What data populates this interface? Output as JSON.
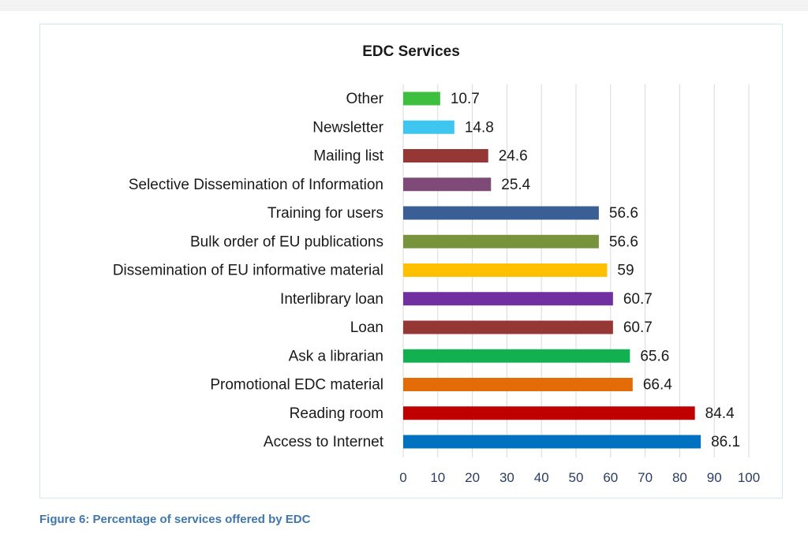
{
  "caption": "Figure 6: Percentage of services offered by EDC",
  "chart_data": {
    "type": "bar",
    "orientation": "horizontal",
    "title": "EDC Services",
    "categories": [
      "Other",
      "Newsletter",
      "Mailing list",
      "Selective Dissemination of Information",
      "Training for users",
      "Bulk order of EU publications",
      "Dissemination of EU informative material",
      "Interlibrary loan",
      "Loan",
      "Ask a librarian",
      "Promotional EDC material",
      "Reading room",
      "Access to Internet"
    ],
    "values": [
      10.7,
      14.8,
      24.6,
      25.4,
      56.6,
      56.6,
      59,
      60.7,
      60.7,
      65.6,
      66.4,
      84.4,
      86.1
    ],
    "value_labels": [
      "10.7",
      "14.8",
      "24.6",
      "25.4",
      "56.6",
      "56.6",
      "59",
      "60.7",
      "60.7",
      "65.6",
      "66.4",
      "84.4",
      "86.1"
    ],
    "colors": [
      "#3fbf3f",
      "#3ec6f0",
      "#953735",
      "#7e4a78",
      "#3a5f94",
      "#77933c",
      "#ffc000",
      "#7030a0",
      "#953735",
      "#12b050",
      "#e36c09",
      "#c00000",
      "#0070c0"
    ],
    "xlim": [
      0,
      100
    ],
    "xticks": [
      "0",
      "10",
      "20",
      "30",
      "40",
      "50",
      "60",
      "70",
      "80",
      "90",
      "100"
    ],
    "grid": "vertical",
    "legend": "none"
  }
}
